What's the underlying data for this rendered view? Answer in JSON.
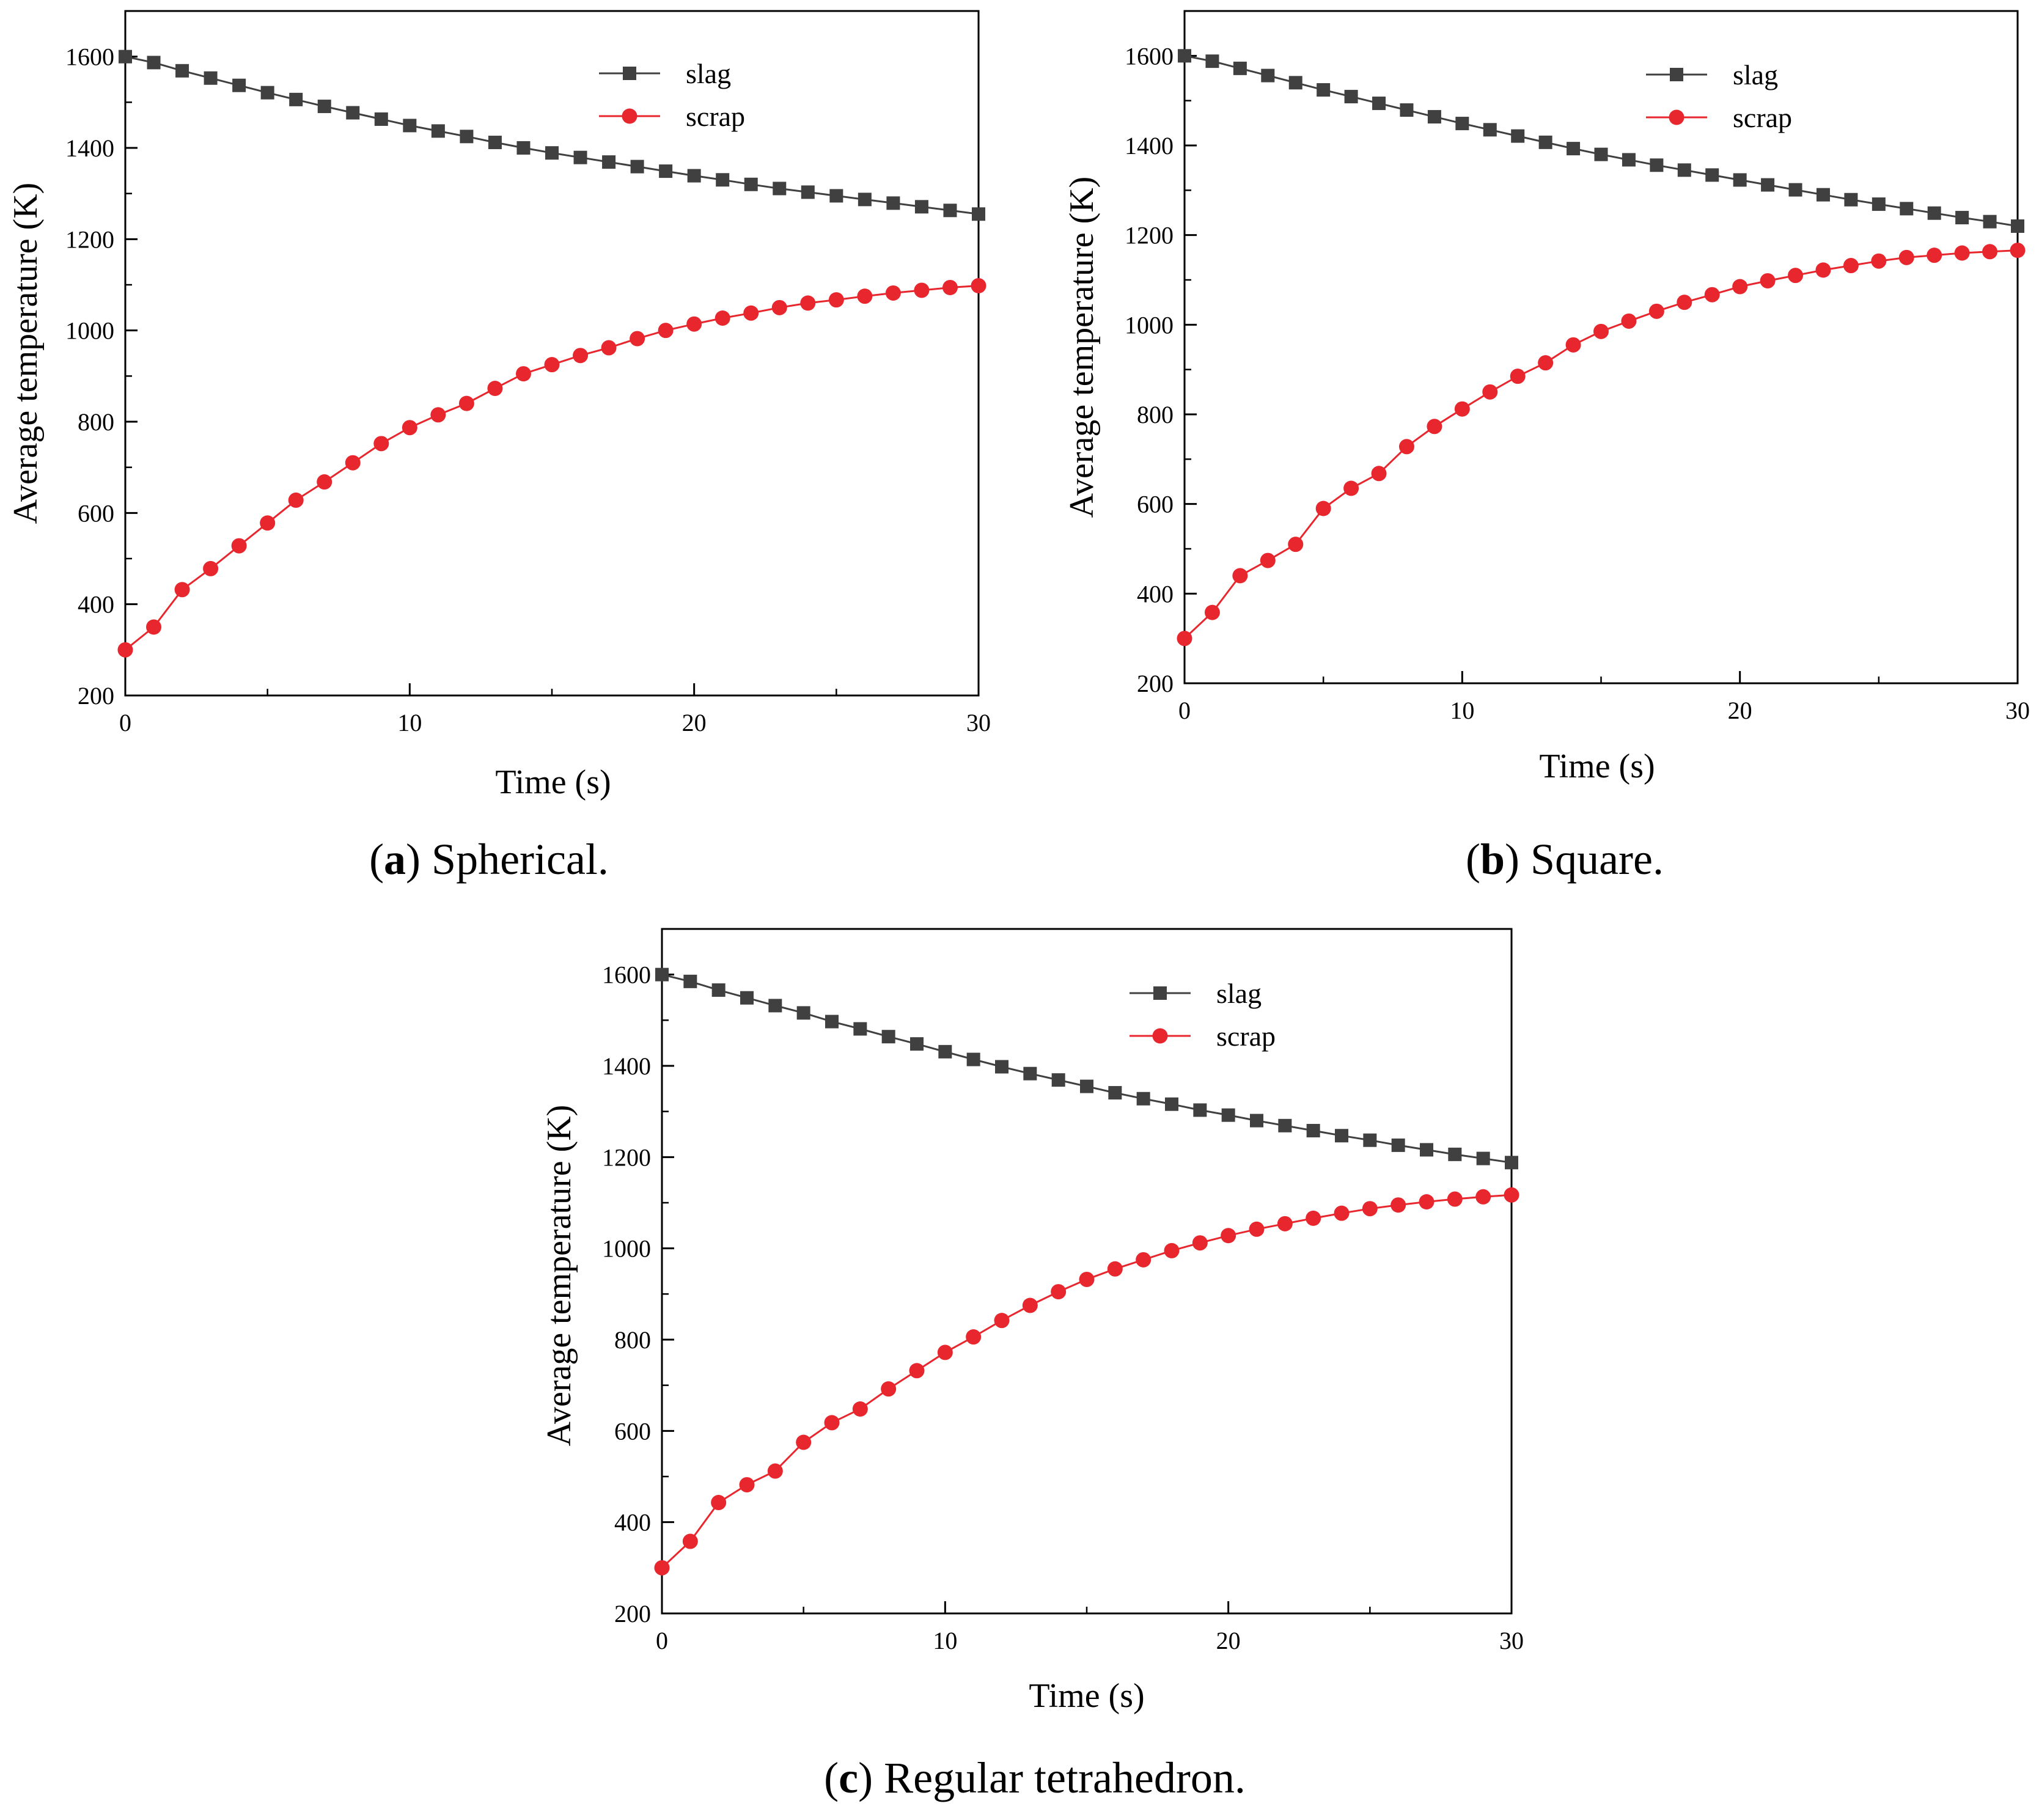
{
  "figure": {
    "captions": [
      {
        "letter": "a",
        "open": "(",
        "close": ")",
        "text": " Spherical."
      },
      {
        "letter": "b",
        "open": "(",
        "close": ")",
        "text": " Square."
      },
      {
        "letter": "c",
        "open": "(",
        "close": ")",
        "text": " Regular tetrahedron."
      }
    ]
  },
  "chart_data": [
    {
      "panel": "a",
      "type": "line",
      "title": "",
      "xlabel": "Time (s)",
      "ylabel": "Average temperature (K)",
      "xlim": [
        0,
        30
      ],
      "ylim": [
        200,
        1700
      ],
      "xticks": [
        0,
        10,
        20,
        30
      ],
      "yticks": [
        200,
        400,
        600,
        800,
        1000,
        1200,
        1400,
        1600
      ],
      "legend_position": "top-right",
      "x": [
        0,
        1,
        2,
        3,
        4,
        5,
        6,
        7,
        8,
        9,
        10,
        11,
        12,
        13,
        14,
        15,
        16,
        17,
        18,
        19,
        20,
        21,
        22,
        23,
        24,
        25,
        26,
        27,
        28,
        29,
        30
      ],
      "series": [
        {
          "name": "slag",
          "color": "#404040",
          "marker": "square",
          "values": [
            1600,
            1587,
            1569,
            1553,
            1537,
            1521,
            1506,
            1491,
            1477,
            1463,
            1449,
            1437,
            1425,
            1412,
            1400,
            1389,
            1379,
            1369,
            1359,
            1349,
            1339,
            1330,
            1320,
            1311,
            1303,
            1295,
            1287,
            1279,
            1271,
            1263,
            1255
          ]
        },
        {
          "name": "scrap",
          "color": "#e8262d",
          "marker": "circle",
          "values": [
            300,
            350,
            432,
            478,
            528,
            578,
            628,
            668,
            710,
            752,
            787,
            815,
            840,
            873,
            905,
            925,
            945,
            962,
            982,
            1000,
            1014,
            1027,
            1038,
            1050,
            1060,
            1067,
            1075,
            1082,
            1088,
            1094,
            1098
          ]
        }
      ]
    },
    {
      "panel": "b",
      "type": "line",
      "title": "",
      "xlabel": "Time (s)",
      "ylabel": "Average temperature (K)",
      "xlim": [
        0,
        30
      ],
      "ylim": [
        200,
        1700
      ],
      "xticks": [
        0,
        10,
        20,
        30
      ],
      "yticks": [
        200,
        400,
        600,
        800,
        1000,
        1200,
        1400,
        1600
      ],
      "legend_position": "top-right",
      "x": [
        0,
        1,
        2,
        3,
        4,
        5,
        6,
        7,
        8,
        9,
        10,
        11,
        12,
        13,
        14,
        15,
        16,
        17,
        18,
        19,
        20,
        21,
        22,
        23,
        24,
        25,
        26,
        27,
        28,
        29,
        30
      ],
      "series": [
        {
          "name": "slag",
          "color": "#404040",
          "marker": "square",
          "values": [
            1600,
            1588,
            1572,
            1556,
            1540,
            1524,
            1509,
            1494,
            1479,
            1464,
            1449,
            1435,
            1421,
            1407,
            1393,
            1380,
            1368,
            1356,
            1345,
            1334,
            1323,
            1312,
            1301,
            1290,
            1279,
            1269,
            1259,
            1249,
            1239,
            1230,
            1220
          ]
        },
        {
          "name": "scrap",
          "color": "#e8262d",
          "marker": "circle",
          "values": [
            300,
            358,
            440,
            474,
            510,
            590,
            635,
            668,
            728,
            773,
            812,
            850,
            885,
            915,
            955,
            985,
            1008,
            1030,
            1050,
            1067,
            1085,
            1098,
            1110,
            1122,
            1132,
            1142,
            1150,
            1155,
            1160,
            1163,
            1166
          ]
        }
      ]
    },
    {
      "panel": "c",
      "type": "line",
      "title": "",
      "xlabel": "Time (s)",
      "ylabel": "Average temperature (K)",
      "xlim": [
        0,
        30
      ],
      "ylim": [
        200,
        1700
      ],
      "xticks": [
        0,
        10,
        20,
        30
      ],
      "yticks": [
        200,
        400,
        600,
        800,
        1000,
        1200,
        1400,
        1600
      ],
      "legend_position": "top-right",
      "x": [
        0,
        1,
        2,
        3,
        4,
        5,
        6,
        7,
        8,
        9,
        10,
        11,
        12,
        13,
        14,
        15,
        16,
        17,
        18,
        19,
        20,
        21,
        22,
        23,
        24,
        25,
        26,
        27,
        28,
        29,
        30
      ],
      "series": [
        {
          "name": "slag",
          "color": "#404040",
          "marker": "square",
          "values": [
            1600,
            1585,
            1566,
            1549,
            1532,
            1516,
            1497,
            1481,
            1464,
            1448,
            1431,
            1414,
            1398,
            1383,
            1369,
            1355,
            1341,
            1328,
            1316,
            1303,
            1292,
            1280,
            1269,
            1258,
            1247,
            1237,
            1226,
            1216,
            1206,
            1197,
            1188
          ]
        },
        {
          "name": "scrap",
          "color": "#e8262d",
          "marker": "circle",
          "values": [
            300,
            358,
            443,
            482,
            512,
            575,
            618,
            648,
            692,
            732,
            772,
            806,
            842,
            875,
            905,
            932,
            955,
            975,
            995,
            1012,
            1028,
            1042,
            1054,
            1066,
            1077,
            1087,
            1095,
            1102,
            1108,
            1113,
            1117
          ]
        }
      ]
    }
  ]
}
